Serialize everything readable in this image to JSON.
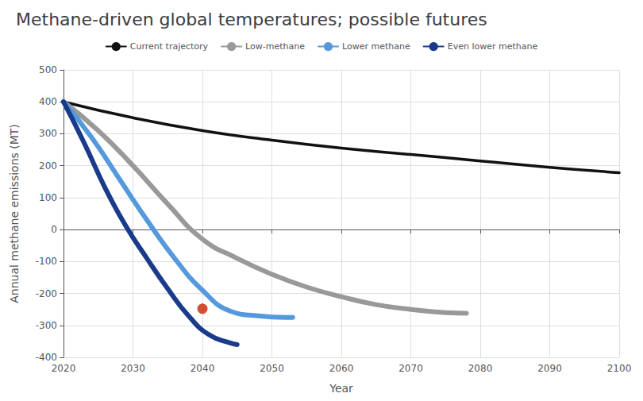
{
  "chart_data": {
    "type": "line",
    "title": "Methane-driven global temperatures; possible futures",
    "xlabel": "Year",
    "ylabel": "Annual methane emissions (MT)",
    "xlim": [
      2020,
      2100
    ],
    "ylim": [
      -400,
      500
    ],
    "xticks": [
      2020,
      2030,
      2040,
      2050,
      2060,
      2070,
      2080,
      2090,
      2100
    ],
    "yticks": [
      -400,
      -300,
      -200,
      -100,
      0,
      100,
      200,
      300,
      400,
      500
    ],
    "grid": true,
    "legend": "upper center",
    "series": [
      {
        "name": "Current trajectory",
        "color": "#111111",
        "x": [
          2020,
          2030,
          2040,
          2050,
          2060,
          2070,
          2080,
          2090,
          2100
        ],
        "values": [
          400,
          350,
          310,
          280,
          255,
          235,
          215,
          195,
          178
        ]
      },
      {
        "name": "Low-methane",
        "color": "#999999",
        "x": [
          2020,
          2025,
          2030,
          2035,
          2040,
          2045,
          2050,
          2055,
          2060,
          2065,
          2070,
          2075,
          2078
        ],
        "values": [
          400,
          310,
          200,
          80,
          -30,
          -90,
          -140,
          -180,
          -210,
          -235,
          -250,
          -260,
          -262
        ]
      },
      {
        "name": "Lower methane",
        "color": "#5599dd",
        "x": [
          2020,
          2024,
          2028,
          2032,
          2036,
          2040,
          2044,
          2048,
          2052,
          2053
        ],
        "values": [
          400,
          290,
          160,
          30,
          -90,
          -190,
          -255,
          -270,
          -275,
          -275
        ]
      },
      {
        "name": "Even lower methane",
        "color": "#1a3a8a",
        "x": [
          2020,
          2023,
          2026,
          2029,
          2032,
          2035,
          2038,
          2041,
          2044,
          2045
        ],
        "values": [
          400,
          270,
          130,
          10,
          -90,
          -185,
          -270,
          -330,
          -355,
          -360
        ]
      },
      {
        "type": "scatter",
        "color": "#cc2200",
        "x": [
          2040
        ],
        "values": [
          -248
        ]
      }
    ]
  }
}
